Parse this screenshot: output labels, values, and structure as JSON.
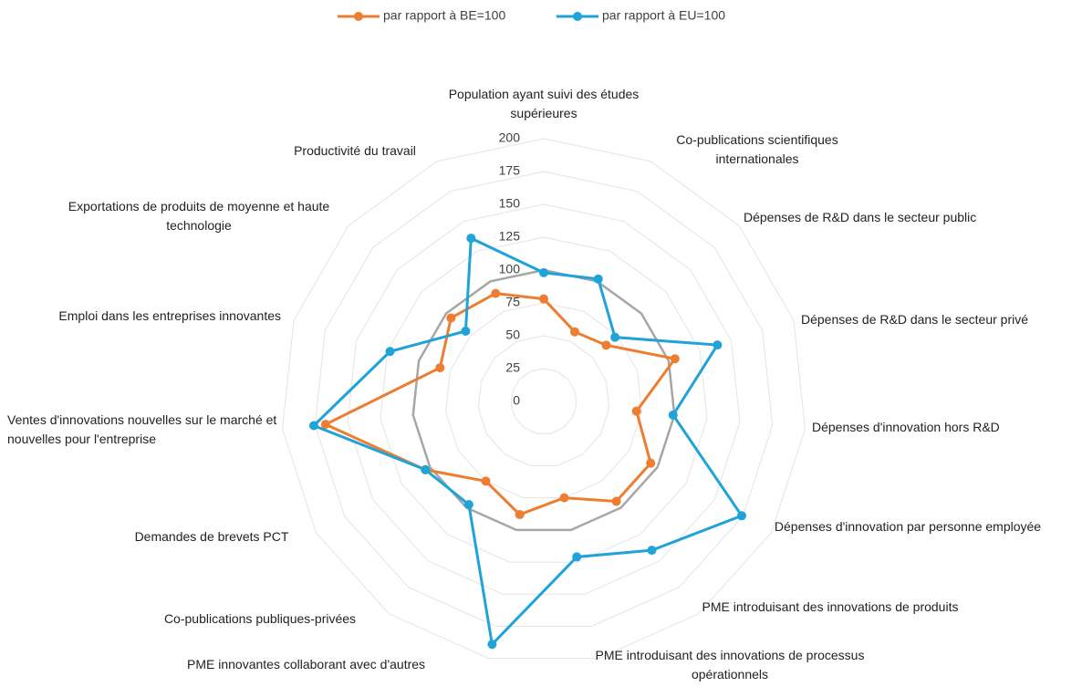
{
  "chart_data": {
    "type": "radar",
    "categories": [
      "Population ayant suivi des études supérieures",
      "Co-publications scientifiques internationales",
      "Dépenses de R&D dans le secteur public",
      "Dépenses de R&D dans le secteur privé",
      "Dépenses d'innovation hors R&D",
      "Dépenses d'innovation par personne employée",
      "PME introduisant des innovations de produits",
      "PME introduisant des innovations de processus opérationnels",
      "PME innovantes collaborant avec d'autres",
      "Co-publications publiques-privées",
      "Demandes de brevets PCT",
      "Ventes d'innovations nouvelles sur le marché et nouvelles pour l'entreprise",
      "Emploi dans les entreprises innovantes",
      "Exportations de produits de moyenne et haute technologie",
      "Productivité du travail"
    ],
    "series": [
      {
        "name": "par rapport à BE=100",
        "color": "#ed7d31",
        "values": [
          78,
          58,
          64,
          105,
          71,
          94,
          94,
          75,
          88,
          75,
          104,
          167,
          83,
          95,
          90
        ]
      },
      {
        "name": "par rapport à EU=100",
        "color": "#1fa3d8",
        "values": [
          98,
          102,
          73,
          139,
          99,
          174,
          140,
          121,
          189,
          97,
          104,
          176,
          123,
          80,
          136
        ]
      }
    ],
    "ylim": [
      0,
      200
    ],
    "yticks": [
      0,
      25,
      50,
      75,
      100,
      125,
      150,
      175,
      200
    ],
    "highlight_tick": 100,
    "grid": true,
    "legend": "top"
  }
}
